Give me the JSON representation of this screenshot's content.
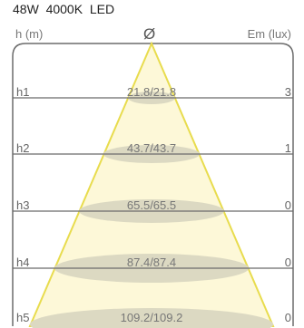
{
  "header": {
    "title": "48W  4000K  LED",
    "left_label": "h (m)",
    "center_symbol": "Ø",
    "right_label": "Em (lux)"
  },
  "rows": [
    {
      "h": "h1",
      "diameter": "21.8/21.8",
      "lux": "3"
    },
    {
      "h": "h2",
      "diameter": "43.7/43.7",
      "lux": "1"
    },
    {
      "h": "h3",
      "diameter": "65.5/65.5",
      "lux": "0"
    },
    {
      "h": "h4",
      "diameter": "87.4/87.4",
      "lux": "0"
    },
    {
      "h": "h5",
      "diameter": "109.2/109.2",
      "lux": "0"
    }
  ],
  "colors": {
    "cone_fill": "#fdf8d8",
    "cone_stroke": "#e8dc4e",
    "ellipse": "#dcd9c2",
    "frame": "#6b6b6b"
  }
}
